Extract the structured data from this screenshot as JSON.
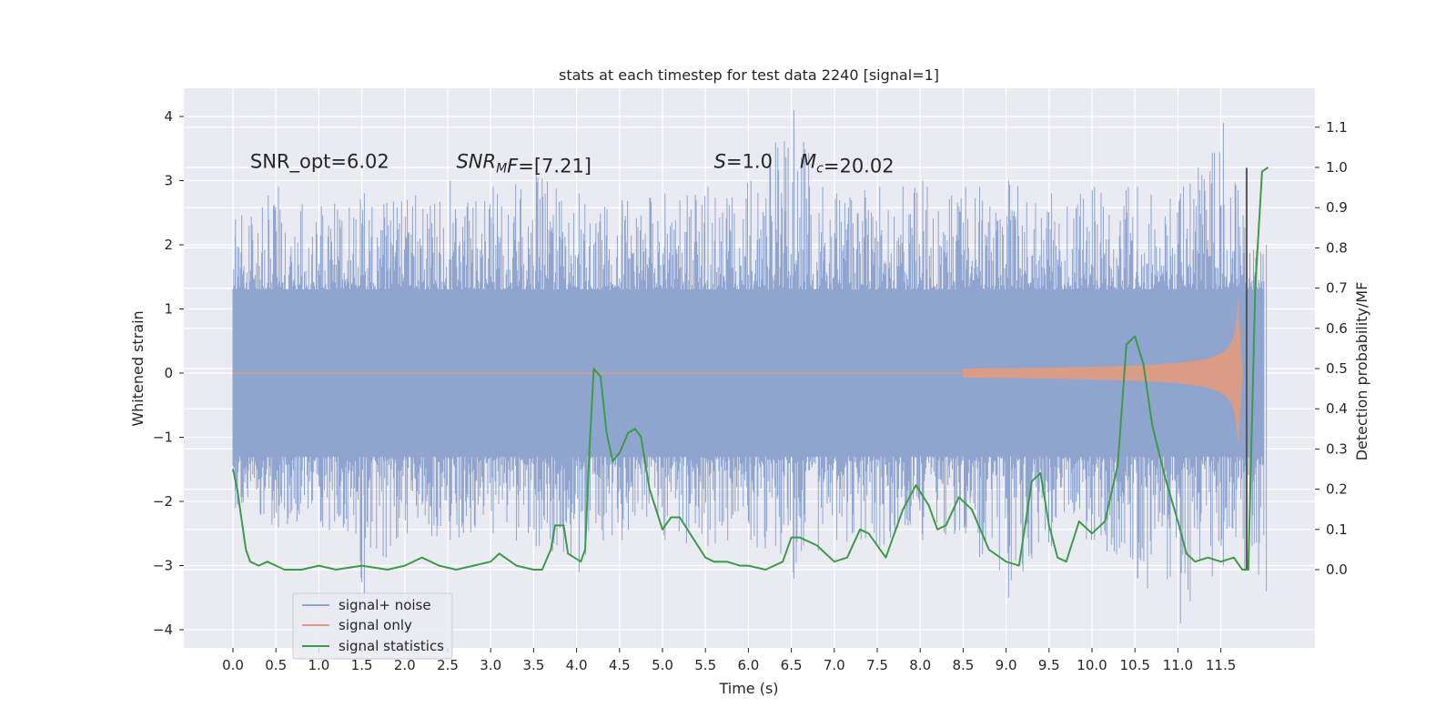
{
  "chart_data": {
    "type": "line",
    "title": "stats at each timestep for test data 2240 [signal=1]",
    "xlabel": "Time (s)",
    "ylabel": "Whitened strain",
    "y2label": "Detection probability/MF",
    "xlim": [
      -0.58,
      12.6
    ],
    "ylim": [
      -4.3,
      4.4
    ],
    "y2lim": [
      -0.2,
      1.2
    ],
    "x_ticks": [
      0.0,
      0.5,
      1.0,
      1.5,
      2.0,
      2.5,
      3.0,
      3.5,
      4.0,
      4.5,
      5.0,
      5.5,
      6.0,
      6.5,
      7.0,
      7.5,
      8.0,
      8.5,
      9.0,
      9.5,
      10.0,
      10.5,
      11.0,
      11.5
    ],
    "x_tick_labels": [
      "0.0",
      "0.5",
      "1.0",
      "1.5",
      "2.0",
      "2.5",
      "3.0",
      "3.5",
      "4.0",
      "4.5",
      "5.0",
      "5.5",
      "6.0",
      "6.5",
      "7.0",
      "7.5",
      "8.0",
      "8.5",
      "9.0",
      "9.5",
      "10.0",
      "10.5",
      "11.0",
      "11.5"
    ],
    "y_ticks": [
      -4,
      -3,
      -2,
      -1,
      0,
      1,
      2,
      3,
      4
    ],
    "y_tick_labels": [
      "−4",
      "−3",
      "−2",
      "−1",
      "0",
      "1",
      "2",
      "3",
      "4"
    ],
    "y2_ticks": [
      0.0,
      0.1,
      0.2,
      0.3,
      0.4,
      0.5,
      0.6,
      0.7,
      0.8,
      0.9,
      1.0,
      1.1
    ],
    "y2_tick_labels": [
      "0.0",
      "0.1",
      "0.2",
      "0.3",
      "0.4",
      "0.5",
      "0.6",
      "0.7",
      "0.8",
      "0.9",
      "1.0",
      "1.1"
    ],
    "grid": true,
    "legend_position": "lower-left",
    "annotations": [
      {
        "parts": [
          {
            "t": "SNR_opt=6.02"
          }
        ],
        "x": 0.2,
        "y": 3.3
      },
      {
        "parts": [
          {
            "t": "SNR",
            "i": true
          },
          {
            "t": "M",
            "i": true,
            "sub": true
          },
          {
            "t": "F",
            "i": true
          },
          {
            "t": "=[7.21]"
          }
        ],
        "x": 2.6,
        "y": 3.3
      },
      {
        "parts": [
          {
            "t": "S",
            "i": true
          },
          {
            "t": "=1.0"
          }
        ],
        "x": 5.6,
        "y": 3.3
      },
      {
        "parts": [
          {
            "t": "M",
            "i": true
          },
          {
            "t": "c",
            "i": true,
            "sub": true
          },
          {
            "t": "=20.02"
          }
        ],
        "x": 6.6,
        "y": 3.3
      }
    ],
    "vertical_marker": {
      "x": 11.8,
      "ymin": -3.05,
      "ymax": 3.2,
      "color": "#555555"
    },
    "series": [
      {
        "name": "signal+ noise",
        "color": "#8fa5cf",
        "axis": "left",
        "x_range": [
          0.0,
          12.0
        ],
        "band_points": [
          [
            0.0,
            2.4,
            -2.1
          ],
          [
            0.5,
            2.9,
            -2.4
          ],
          [
            1.0,
            2.6,
            -2.3
          ],
          [
            1.5,
            2.8,
            -3.5
          ],
          [
            2.0,
            2.7,
            -2.5
          ],
          [
            2.5,
            3.0,
            -2.6
          ],
          [
            3.0,
            2.9,
            -2.5
          ],
          [
            3.5,
            3.1,
            -2.7
          ],
          [
            4.0,
            2.8,
            -3.1
          ],
          [
            4.5,
            2.7,
            -2.6
          ],
          [
            5.0,
            2.8,
            -2.6
          ],
          [
            5.5,
            2.9,
            -2.7
          ],
          [
            6.0,
            3.0,
            -2.6
          ],
          [
            6.5,
            4.1,
            -3.2
          ],
          [
            7.0,
            2.8,
            -2.6
          ],
          [
            7.5,
            2.9,
            -2.7
          ],
          [
            8.0,
            3.0,
            -2.6
          ],
          [
            8.5,
            2.9,
            -2.5
          ],
          [
            9.0,
            3.0,
            -3.5
          ],
          [
            9.5,
            2.8,
            -2.7
          ],
          [
            10.0,
            2.9,
            -2.6
          ],
          [
            10.5,
            2.9,
            -3.2
          ],
          [
            11.0,
            2.8,
            -3.9
          ],
          [
            11.5,
            3.9,
            -3.0
          ],
          [
            12.0,
            2.0,
            -3.4
          ]
        ]
      },
      {
        "name": "signal only",
        "color": "#dd9b83",
        "axis": "left",
        "chirp": {
          "start": 8.5,
          "end": 11.75,
          "peak_amplitude": 1.15,
          "peak_time": 11.7
        }
      },
      {
        "name": "signal statistics",
        "color": "#3d9b48",
        "axis": "right",
        "points": [
          [
            0.0,
            0.25
          ],
          [
            0.05,
            0.2
          ],
          [
            0.15,
            0.05
          ],
          [
            0.2,
            0.02
          ],
          [
            0.3,
            0.01
          ],
          [
            0.4,
            0.02
          ],
          [
            0.5,
            0.01
          ],
          [
            0.6,
            0.0
          ],
          [
            0.8,
            0.0
          ],
          [
            1.0,
            0.01
          ],
          [
            1.2,
            0.0
          ],
          [
            1.5,
            0.01
          ],
          [
            1.8,
            0.0
          ],
          [
            2.0,
            0.01
          ],
          [
            2.2,
            0.03
          ],
          [
            2.4,
            0.01
          ],
          [
            2.6,
            0.0
          ],
          [
            2.8,
            0.01
          ],
          [
            3.0,
            0.02
          ],
          [
            3.1,
            0.04
          ],
          [
            3.3,
            0.01
          ],
          [
            3.5,
            0.0
          ],
          [
            3.6,
            0.0
          ],
          [
            3.7,
            0.05
          ],
          [
            3.75,
            0.11
          ],
          [
            3.85,
            0.11
          ],
          [
            3.9,
            0.04
          ],
          [
            4.05,
            0.02
          ],
          [
            4.1,
            0.05
          ],
          [
            4.15,
            0.3
          ],
          [
            4.2,
            0.5
          ],
          [
            4.28,
            0.48
          ],
          [
            4.35,
            0.34
          ],
          [
            4.42,
            0.27
          ],
          [
            4.5,
            0.29
          ],
          [
            4.6,
            0.34
          ],
          [
            4.68,
            0.35
          ],
          [
            4.75,
            0.33
          ],
          [
            4.85,
            0.2
          ],
          [
            5.0,
            0.1
          ],
          [
            5.1,
            0.13
          ],
          [
            5.2,
            0.13
          ],
          [
            5.35,
            0.08
          ],
          [
            5.5,
            0.03
          ],
          [
            5.6,
            0.02
          ],
          [
            5.75,
            0.02
          ],
          [
            5.9,
            0.01
          ],
          [
            6.0,
            0.01
          ],
          [
            6.2,
            0.0
          ],
          [
            6.4,
            0.02
          ],
          [
            6.5,
            0.08
          ],
          [
            6.6,
            0.08
          ],
          [
            6.8,
            0.06
          ],
          [
            7.0,
            0.02
          ],
          [
            7.15,
            0.03
          ],
          [
            7.3,
            0.1
          ],
          [
            7.4,
            0.09
          ],
          [
            7.6,
            0.03
          ],
          [
            7.8,
            0.15
          ],
          [
            7.95,
            0.21
          ],
          [
            8.1,
            0.16
          ],
          [
            8.2,
            0.1
          ],
          [
            8.3,
            0.11
          ],
          [
            8.45,
            0.18
          ],
          [
            8.6,
            0.15
          ],
          [
            8.8,
            0.05
          ],
          [
            9.0,
            0.02
          ],
          [
            9.15,
            0.01
          ],
          [
            9.3,
            0.22
          ],
          [
            9.4,
            0.24
          ],
          [
            9.5,
            0.11
          ],
          [
            9.6,
            0.03
          ],
          [
            9.7,
            0.02
          ],
          [
            9.85,
            0.12
          ],
          [
            10.0,
            0.09
          ],
          [
            10.15,
            0.12
          ],
          [
            10.3,
            0.26
          ],
          [
            10.4,
            0.56
          ],
          [
            10.5,
            0.58
          ],
          [
            10.6,
            0.51
          ],
          [
            10.7,
            0.36
          ],
          [
            10.85,
            0.23
          ],
          [
            11.0,
            0.12
          ],
          [
            11.1,
            0.04
          ],
          [
            11.2,
            0.02
          ],
          [
            11.35,
            0.03
          ],
          [
            11.5,
            0.02
          ],
          [
            11.65,
            0.03
          ],
          [
            11.75,
            0.0
          ],
          [
            11.82,
            0.0
          ],
          [
            11.9,
            0.7
          ],
          [
            11.98,
            0.99
          ],
          [
            12.05,
            1.0
          ]
        ]
      }
    ]
  }
}
